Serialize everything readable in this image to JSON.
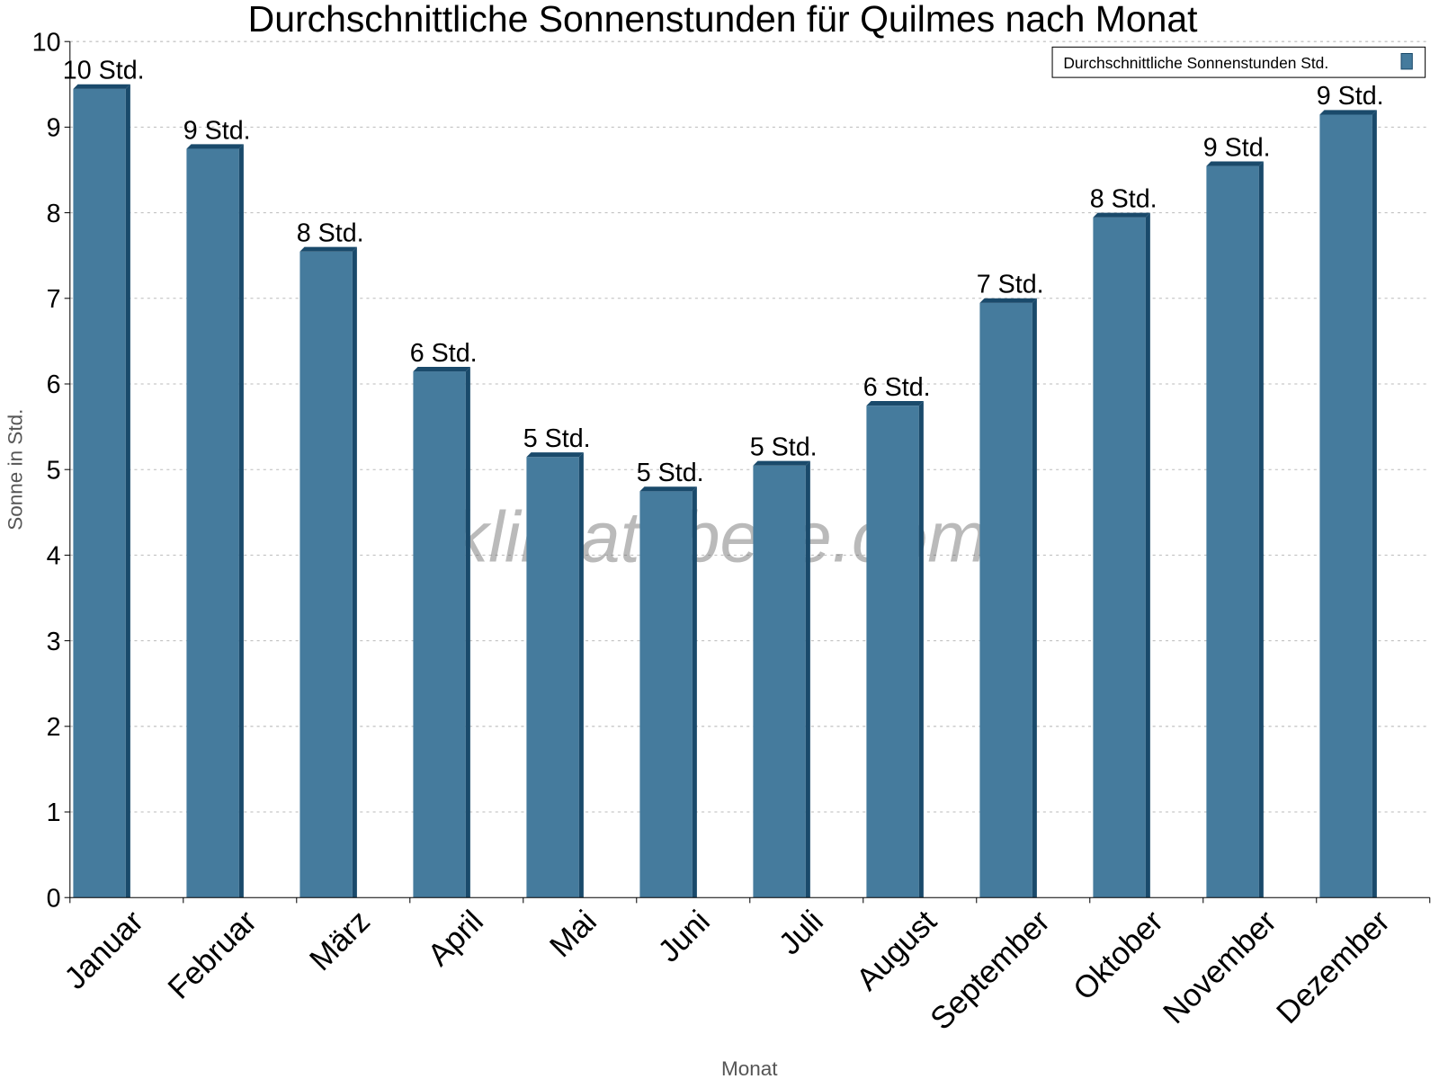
{
  "chart_data": {
    "type": "bar",
    "title": "Durchschnittliche Sonnenstunden für Quilmes nach Monat",
    "xlabel": "Monat",
    "ylabel": "Sonne in Std.",
    "ylim": [
      0,
      10
    ],
    "yticks": [
      "0",
      "1",
      "2",
      "3",
      "4",
      "5",
      "6",
      "7",
      "8",
      "9",
      "10"
    ],
    "grid": true,
    "legend_position": "top-right",
    "categories": [
      "Januar",
      "Februar",
      "März",
      "April",
      "Mai",
      "Juni",
      "Juli",
      "August",
      "September",
      "Oktober",
      "November",
      "Dezember"
    ],
    "series": [
      {
        "name": "Durchschnittliche Sonnenstunden Std.",
        "values": [
          9.5,
          8.8,
          7.6,
          6.2,
          5.2,
          4.8,
          5.1,
          5.8,
          7.0,
          8.0,
          8.6,
          9.2
        ],
        "data_labels": [
          "10 Std.",
          "9 Std.",
          "8 Std.",
          "6 Std.",
          "5 Std.",
          "5 Std.",
          "5 Std.",
          "6 Std.",
          "7 Std.",
          "8 Std.",
          "9 Std.",
          "9 Std."
        ],
        "color": "#457b9d",
        "side_color": "#1a4a6b"
      }
    ],
    "watermark": "klimatabelle.com"
  }
}
